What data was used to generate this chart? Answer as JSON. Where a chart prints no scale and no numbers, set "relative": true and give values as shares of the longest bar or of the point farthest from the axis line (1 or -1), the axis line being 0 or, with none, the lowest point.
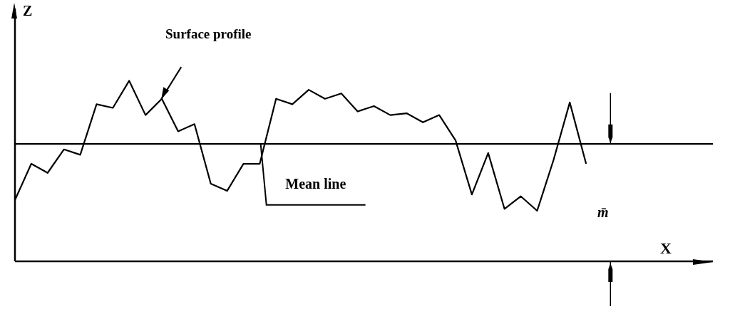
{
  "chart_data": {
    "type": "line",
    "relative": true,
    "xlabel": "X",
    "ylabel": "Z",
    "categories": [
      null,
      null,
      null,
      null,
      null,
      null,
      null,
      null,
      null,
      null,
      null,
      null,
      null,
      null,
      null,
      null,
      null,
      null,
      null,
      null,
      null,
      null,
      null,
      null,
      null,
      null,
      null,
      null,
      null,
      null,
      null,
      null,
      null,
      null,
      null,
      null
    ],
    "series": [
      {
        "color": "#000000",
        "values": [
          0.34,
          0.54,
          0.49,
          0.62,
          0.59,
          0.87,
          0.85,
          1,
          0.81,
          0.9,
          0.72,
          0.76,
          0.43,
          0.39,
          0.54,
          0.54,
          0.9,
          0.87,
          0.95,
          0.9,
          0.93,
          0.83,
          0.86,
          0.81,
          0.82,
          0.77,
          0.81,
          0.67,
          0.37,
          0.6,
          0.29,
          0.36,
          0.28,
          0.56,
          0.88,
          0.54
        ]
      }
    ],
    "ref_lines": [
      {
        "axis": "y",
        "value": 0.65,
        "label": "Mean line",
        "color": "#000000"
      }
    ],
    "annotations": [
      "Surface profile",
      "m̄"
    ],
    "marker": "none",
    "line_style": "solid",
    "grid": false,
    "legend": false
  }
}
